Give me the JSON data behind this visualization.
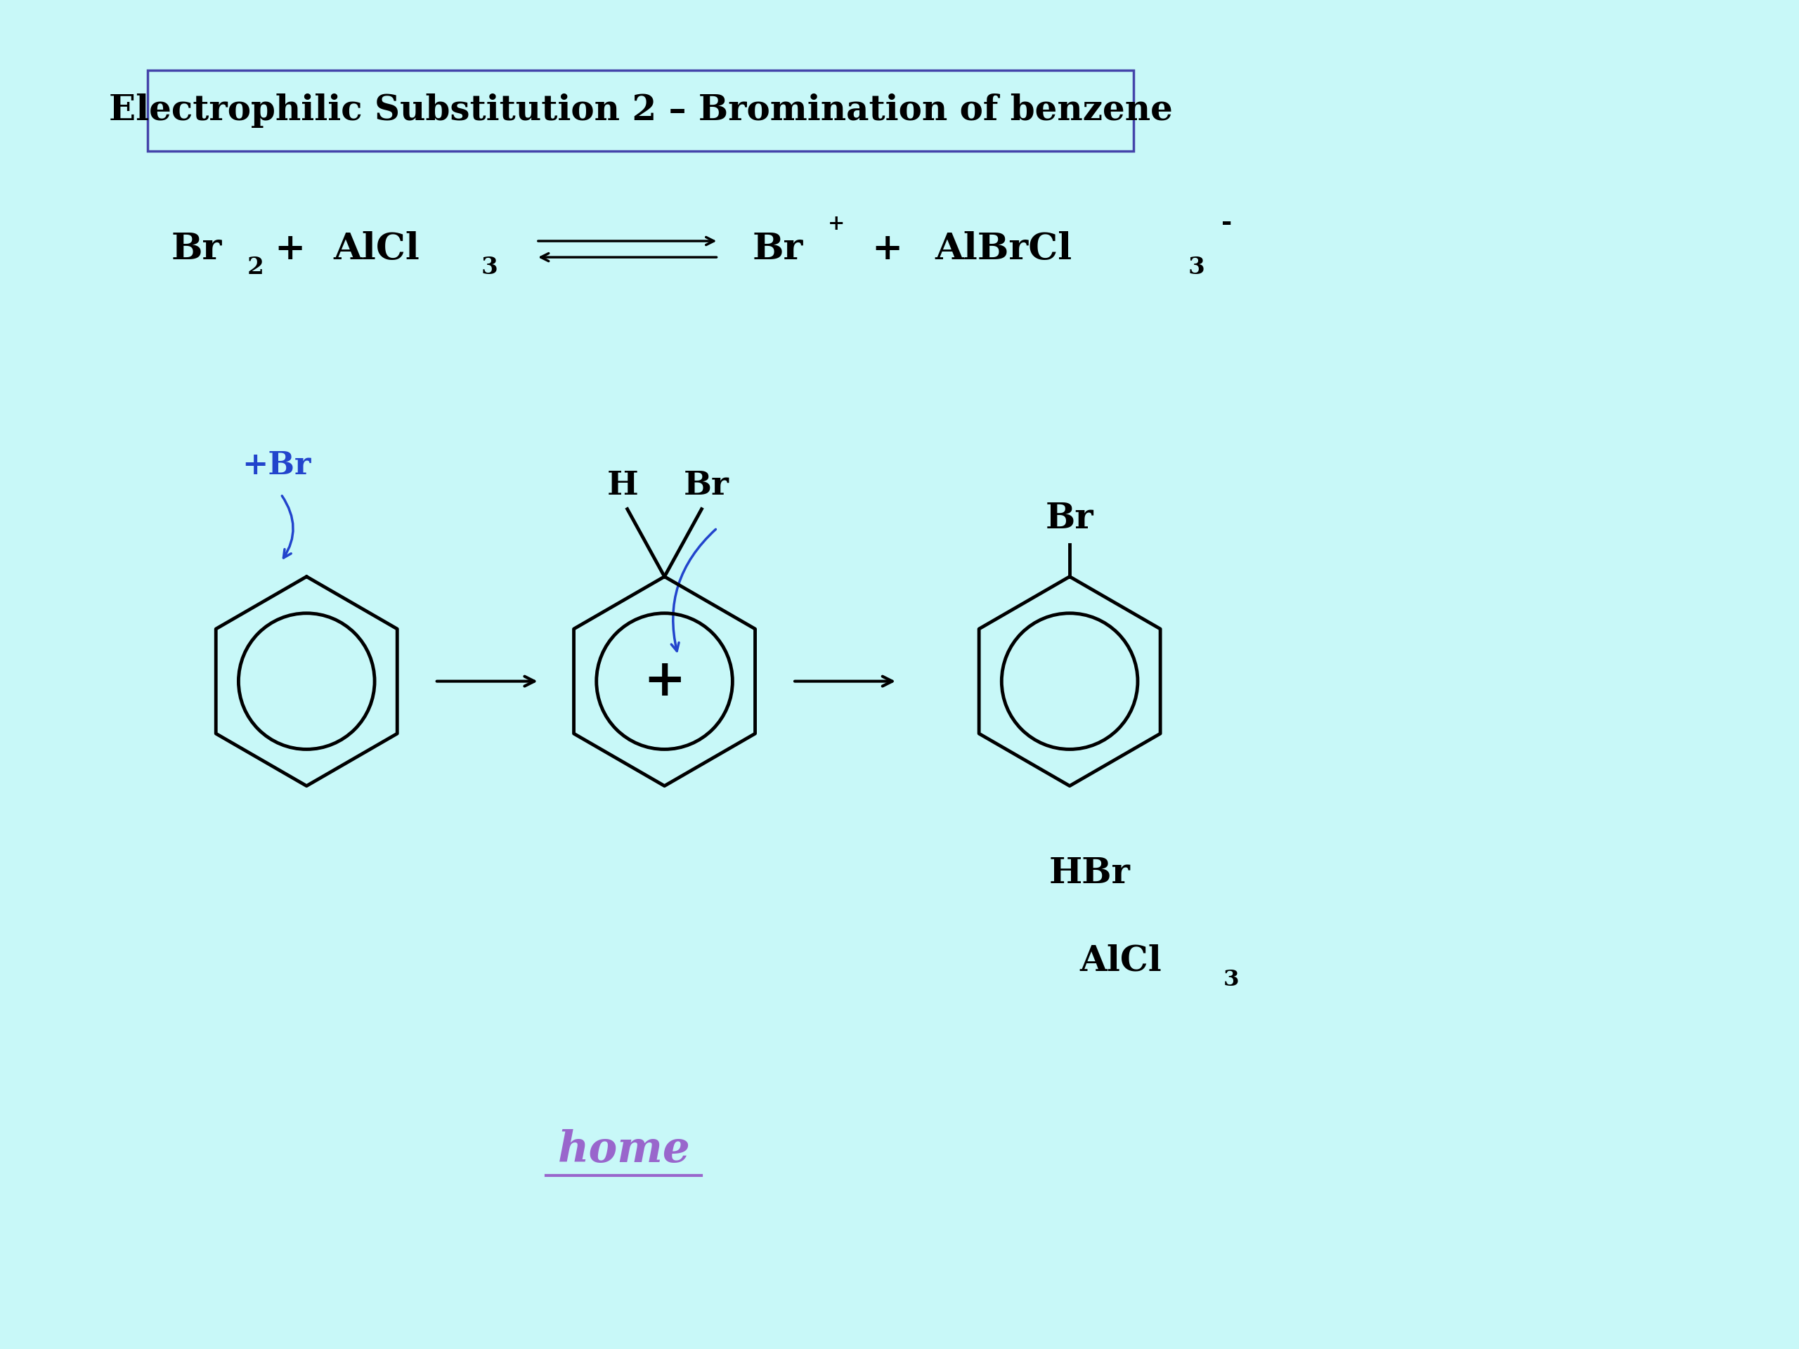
{
  "background_color": "#c8f8f8",
  "title_box_text": "Electrophilic Substitution 2 – Bromination of benzene",
  "title_fontsize": 36,
  "title_box_border": "#4444aa",
  "text_color": "#000000",
  "blue_arrow_color": "#2244cc",
  "home_color": "#9966cc",
  "home_text": "home",
  "hbr_text": "HBr",
  "br_label": "Br",
  "h_label": "H",
  "plus_br_label": "+Br"
}
